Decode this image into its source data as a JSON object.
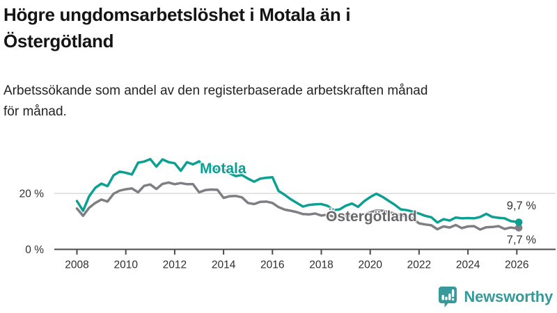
{
  "chart_data": {
    "type": "line",
    "title": "Högre ungdomsarbetslöshet i Motala än i Östergötland",
    "title_lines": [
      "Högre ungdomsarbetslöshet i Motala än i",
      "Östergötland"
    ],
    "subtitle_lines": [
      "Arbetssökande som andel av den registerbaserade arbetskraften månad",
      "för månad."
    ],
    "unit": "%",
    "x_ticks": [
      2008,
      2010,
      2012,
      2014,
      2016,
      2018,
      2020,
      2022,
      2024,
      2026
    ],
    "x_range": [
      2008,
      2026.1
    ],
    "y_axis": {
      "range": [
        0,
        34
      ],
      "ticks": [
        {
          "value": 20,
          "label": "20 %"
        },
        {
          "value": 0,
          "label": "0 %"
        }
      ],
      "gridlines": [
        20
      ]
    },
    "legend_position": "inline-labels",
    "series": [
      {
        "name": "Motala",
        "color": "#0ba092",
        "end_value": 9.7,
        "end_label": "9,7 %",
        "points": [
          [
            2008.0,
            17.3
          ],
          [
            2008.25,
            13.8
          ],
          [
            2008.5,
            19.0
          ],
          [
            2008.75,
            22.0
          ],
          [
            2009.0,
            23.5
          ],
          [
            2009.25,
            22.6
          ],
          [
            2009.5,
            26.5
          ],
          [
            2009.75,
            27.8
          ],
          [
            2010.0,
            27.4
          ],
          [
            2010.25,
            26.8
          ],
          [
            2010.5,
            31.0
          ],
          [
            2010.75,
            31.4
          ],
          [
            2011.0,
            32.3
          ],
          [
            2011.25,
            29.6
          ],
          [
            2011.5,
            32.2
          ],
          [
            2011.75,
            31.2
          ],
          [
            2012.0,
            30.8
          ],
          [
            2012.25,
            28.1
          ],
          [
            2012.5,
            31.2
          ],
          [
            2012.75,
            30.4
          ],
          [
            2013.0,
            31.5
          ],
          [
            2013.25,
            29.0
          ],
          [
            2013.5,
            29.8
          ],
          [
            2013.75,
            28.2
          ],
          [
            2014.0,
            28.6
          ],
          [
            2014.25,
            27.2
          ],
          [
            2014.5,
            26.2
          ],
          [
            2014.75,
            26.6
          ],
          [
            2015.0,
            25.3
          ],
          [
            2015.25,
            24.2
          ],
          [
            2015.5,
            25.3
          ],
          [
            2015.75,
            25.6
          ],
          [
            2016.0,
            25.8
          ],
          [
            2016.25,
            20.9
          ],
          [
            2016.5,
            19.5
          ],
          [
            2016.75,
            17.9
          ],
          [
            2017.0,
            16.6
          ],
          [
            2017.25,
            15.3
          ],
          [
            2017.5,
            15.9
          ],
          [
            2017.75,
            16.1
          ],
          [
            2018.0,
            16.2
          ],
          [
            2018.25,
            15.6
          ],
          [
            2018.5,
            14.0
          ],
          [
            2018.75,
            14.3
          ],
          [
            2019.0,
            15.6
          ],
          [
            2019.25,
            16.4
          ],
          [
            2019.5,
            15.2
          ],
          [
            2019.75,
            17.2
          ],
          [
            2020.0,
            18.7
          ],
          [
            2020.25,
            19.9
          ],
          [
            2020.5,
            18.8
          ],
          [
            2020.75,
            17.4
          ],
          [
            2021.0,
            16.0
          ],
          [
            2021.25,
            14.3
          ],
          [
            2021.5,
            14.0
          ],
          [
            2021.75,
            13.5
          ],
          [
            2022.0,
            12.8
          ],
          [
            2022.25,
            12.0
          ],
          [
            2022.5,
            11.5
          ],
          [
            2022.75,
            9.6
          ],
          [
            2023.0,
            10.8
          ],
          [
            2023.25,
            10.3
          ],
          [
            2023.5,
            11.4
          ],
          [
            2023.75,
            11.1
          ],
          [
            2024.0,
            11.2
          ],
          [
            2024.25,
            11.1
          ],
          [
            2024.5,
            11.6
          ],
          [
            2024.75,
            12.7
          ],
          [
            2025.0,
            11.6
          ],
          [
            2025.25,
            11.3
          ],
          [
            2025.5,
            11.1
          ],
          [
            2025.75,
            10.1
          ],
          [
            2026.0,
            9.8
          ],
          [
            2026.08,
            9.7
          ]
        ]
      },
      {
        "name": "Östergötland",
        "color": "#7e7e83",
        "end_value": 7.7,
        "end_label": "7,7 %",
        "points": [
          [
            2008.0,
            14.6
          ],
          [
            2008.25,
            12.0
          ],
          [
            2008.5,
            14.9
          ],
          [
            2008.75,
            16.6
          ],
          [
            2009.0,
            17.8
          ],
          [
            2009.25,
            17.1
          ],
          [
            2009.5,
            19.9
          ],
          [
            2009.75,
            21.0
          ],
          [
            2010.0,
            21.5
          ],
          [
            2010.25,
            21.8
          ],
          [
            2010.5,
            20.4
          ],
          [
            2010.75,
            22.7
          ],
          [
            2011.0,
            23.2
          ],
          [
            2011.25,
            21.6
          ],
          [
            2011.5,
            23.4
          ],
          [
            2011.75,
            23.9
          ],
          [
            2012.0,
            23.3
          ],
          [
            2012.25,
            23.7
          ],
          [
            2012.5,
            23.3
          ],
          [
            2012.75,
            23.3
          ],
          [
            2013.0,
            20.4
          ],
          [
            2013.25,
            21.2
          ],
          [
            2013.5,
            21.4
          ],
          [
            2013.75,
            21.3
          ],
          [
            2014.0,
            18.4
          ],
          [
            2014.25,
            19.0
          ],
          [
            2014.5,
            19.1
          ],
          [
            2014.75,
            18.6
          ],
          [
            2015.0,
            16.6
          ],
          [
            2015.25,
            16.2
          ],
          [
            2015.5,
            17.0
          ],
          [
            2015.75,
            17.1
          ],
          [
            2016.0,
            16.6
          ],
          [
            2016.25,
            15.1
          ],
          [
            2016.5,
            14.2
          ],
          [
            2016.75,
            13.8
          ],
          [
            2017.0,
            13.3
          ],
          [
            2017.25,
            12.6
          ],
          [
            2017.5,
            12.5
          ],
          [
            2017.75,
            12.8
          ],
          [
            2018.0,
            12.1
          ],
          [
            2018.25,
            12.4
          ],
          [
            2018.5,
            11.7
          ],
          [
            2018.75,
            11.5
          ],
          [
            2019.0,
            11.9
          ],
          [
            2019.25,
            12.3
          ],
          [
            2019.5,
            11.9
          ],
          [
            2019.75,
            12.5
          ],
          [
            2020.0,
            13.2
          ],
          [
            2020.25,
            13.9
          ],
          [
            2020.5,
            13.8
          ],
          [
            2020.75,
            13.3
          ],
          [
            2021.0,
            12.8
          ],
          [
            2021.25,
            12.2
          ],
          [
            2021.5,
            11.8
          ],
          [
            2021.75,
            11.0
          ],
          [
            2022.0,
            9.3
          ],
          [
            2022.25,
            8.9
          ],
          [
            2022.5,
            8.6
          ],
          [
            2022.75,
            7.2
          ],
          [
            2023.0,
            8.2
          ],
          [
            2023.25,
            7.8
          ],
          [
            2023.5,
            8.7
          ],
          [
            2023.75,
            7.6
          ],
          [
            2024.0,
            8.2
          ],
          [
            2024.25,
            8.3
          ],
          [
            2024.5,
            7.1
          ],
          [
            2024.75,
            7.9
          ],
          [
            2025.0,
            8.0
          ],
          [
            2025.25,
            8.3
          ],
          [
            2025.5,
            7.3
          ],
          [
            2025.75,
            7.8
          ],
          [
            2026.0,
            7.5
          ],
          [
            2026.08,
            7.7
          ]
        ]
      }
    ]
  },
  "colors": {
    "motala_line": "#0ba092",
    "ostergotland_line": "#7e7e83",
    "ostergotland_label": "#67676c",
    "gridline": "#dadada",
    "axis": "#4a4a4a",
    "brand_teal": "#37999a"
  },
  "footer": {
    "brand": "Newsworthy"
  }
}
